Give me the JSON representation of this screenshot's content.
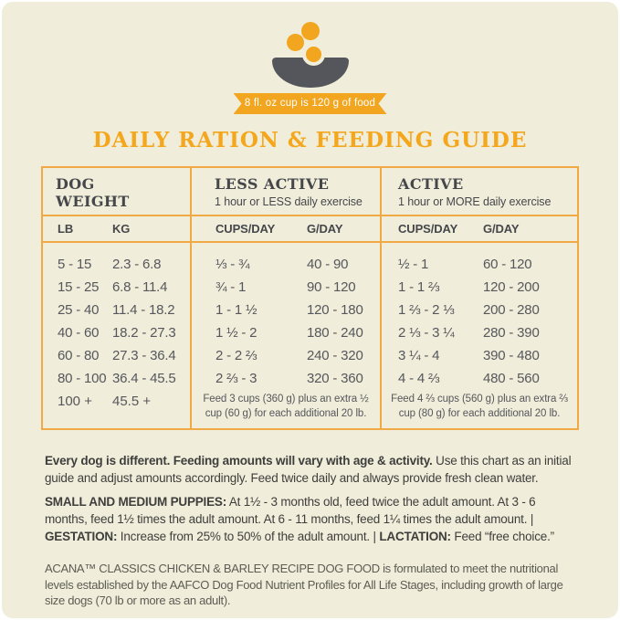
{
  "colors": {
    "accent_orange": "#f2a51e",
    "title_orange": "#f4a71d",
    "table_border_orange": "#f0a945",
    "bowl_gray": "#54565b",
    "panel_cream": "#f0edda",
    "table_text_gray": "#56575c",
    "body_text": "#3e3e3c"
  },
  "header": {
    "badge": "8 fl. oz cup is 120 g of food",
    "title": "DAILY RATION & FEEDING GUIDE"
  },
  "table": {
    "weight": {
      "title": "DOG WEIGHT",
      "col_lb": "LB",
      "col_kg": "KG"
    },
    "less_active": {
      "title": "LESS ACTIVE",
      "subtitle": "1 hour or LESS daily exercise",
      "col_cups": "CUPS/DAY",
      "col_g": "G/DAY"
    },
    "active": {
      "title": "ACTIVE",
      "subtitle": "1 hour or MORE daily exercise",
      "col_cups": "CUPS/DAY",
      "col_g": "G/DAY"
    },
    "rows": [
      {
        "lb": "5 - 15",
        "kg": "2.3 - 6.8",
        "less_cups": "⅓ - ¾",
        "less_g": "40 - 90",
        "active_cups": "½ - 1",
        "active_g": "60 - 120"
      },
      {
        "lb": "15 - 25",
        "kg": "6.8 - 11.4",
        "less_cups": "¾ - 1",
        "less_g": "90 - 120",
        "active_cups": "1 - 1 ⅔",
        "active_g": "120 - 200"
      },
      {
        "lb": "25 - 40",
        "kg": "11.4 - 18.2",
        "less_cups": "1 - 1 ½",
        "less_g": "120 - 180",
        "active_cups": "1 ⅔ - 2 ⅓",
        "active_g": "200 - 280"
      },
      {
        "lb": "40 - 60",
        "kg": "18.2 - 27.3",
        "less_cups": "1 ½ - 2",
        "less_g": "180 - 240",
        "active_cups": "2 ⅓ - 3 ¼",
        "active_g": "280 - 390"
      },
      {
        "lb": "60 - 80",
        "kg": "27.3 - 36.4",
        "less_cups": "2 - 2 ⅔",
        "less_g": "240 - 320",
        "active_cups": "3 ¼ - 4",
        "active_g": "390 - 480"
      },
      {
        "lb": "80 - 100",
        "kg": "36.4 - 45.5",
        "less_cups": "2 ⅔ - 3",
        "less_g": "320 - 360",
        "active_cups": "4 - 4 ⅔",
        "active_g": "480 - 560"
      }
    ],
    "extra": {
      "lb": "100 +",
      "kg": "45.5 +",
      "less_note": "Feed 3 cups (360 g) plus an extra ½ cup (60 g) for each additional 20 lb.",
      "active_note": "Feed 4 ⅔ cups (560 g) plus an extra ⅔ cup (80 g) for each additional 20 lb."
    }
  },
  "notes": {
    "p1_bold": "Every dog is different. Feeding amounts will vary with age & activity.",
    "p1_rest": " Use this chart as an initial guide and adjust amounts accordingly. Feed twice daily and always provide fresh clean water.",
    "p2_b1": "SMALL AND MEDIUM PUPPIES:",
    "p2_t1": " At 1½ - 3 months old, feed twice the adult amount. At 3 - 6 months, feed 1½ times the adult amount. At 6 - 11 months, feed 1¼ times the adult amount.  |  ",
    "p2_b2": "GESTATION:",
    "p2_t2": " Increase from 25% to 50% of the adult amount.  |  ",
    "p2_b3": "LACTATION:",
    "p2_t3": " Feed “free choice.”",
    "p3": "ACANA™ CLASSICS CHICKEN & BARLEY RECIPE DOG FOOD is formulated to meet the nutritional levels established by the AAFCO Dog Food Nutrient Profiles for All Life Stages, including growth of large size dogs (70 lb or more as an adult)."
  }
}
